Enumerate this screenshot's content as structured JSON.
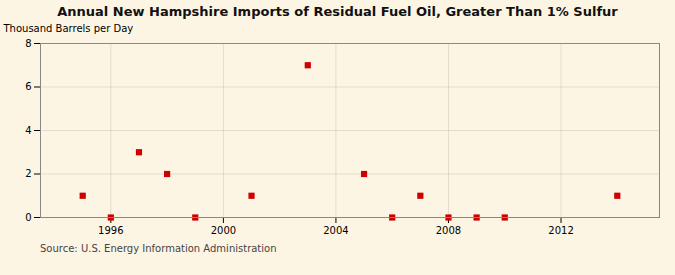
{
  "chart_data": {
    "type": "scatter",
    "title": "Annual New Hampshire Imports of Residual Fuel Oil, Greater Than 1% Sulfur",
    "ylabel": "Thousand Barrels per Day",
    "source": "Source: U.S. Energy Information Administration",
    "x": [
      1995,
      1996,
      1997,
      1998,
      1999,
      2001,
      2003,
      2005,
      2006,
      2007,
      2008,
      2009,
      2010,
      2014
    ],
    "values": [
      1,
      0,
      3,
      2,
      0,
      1,
      7,
      2,
      0,
      1,
      0,
      0,
      0,
      1
    ],
    "color": "#cc0000",
    "marker": "square",
    "xlim": [
      1993.5,
      2015.5
    ],
    "ylim": [
      0,
      8
    ],
    "xticks": [
      1996,
      2000,
      2004,
      2008,
      2012
    ],
    "yticks": [
      0,
      2,
      4,
      6,
      8
    ],
    "grid": true
  }
}
